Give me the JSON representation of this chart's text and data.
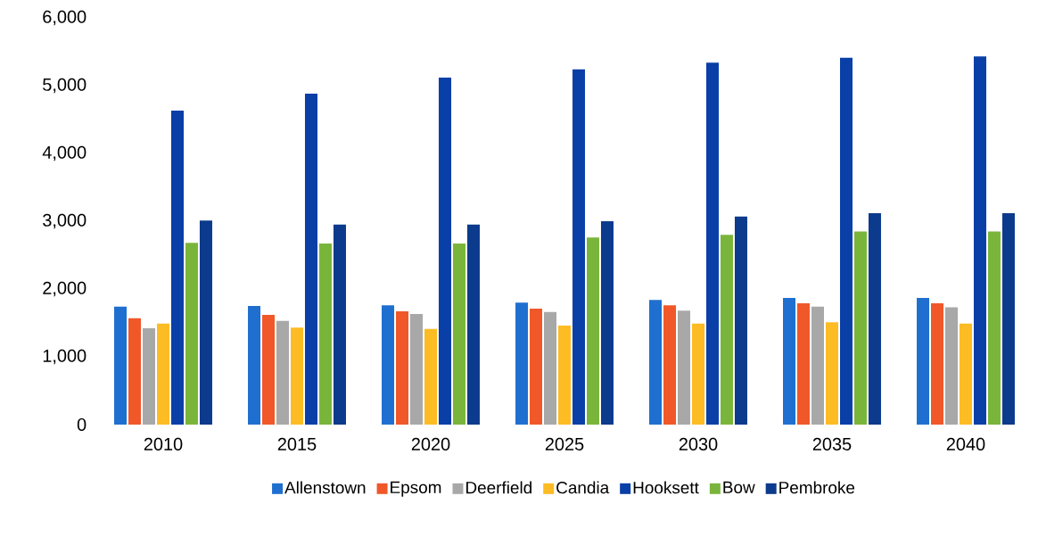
{
  "chart_data": {
    "type": "bar",
    "categories": [
      "2010",
      "2015",
      "2020",
      "2025",
      "2030",
      "2035",
      "2040"
    ],
    "series": [
      {
        "name": "Allenstown",
        "color": "#1f6fd0",
        "values": [
          1740,
          1750,
          1760,
          1800,
          1840,
          1870,
          1870
        ]
      },
      {
        "name": "Epsom",
        "color": "#f0582a",
        "values": [
          1570,
          1620,
          1670,
          1710,
          1760,
          1790,
          1790
        ]
      },
      {
        "name": "Deerfield",
        "color": "#a8a8a8",
        "values": [
          1420,
          1530,
          1630,
          1660,
          1680,
          1740,
          1730
        ]
      },
      {
        "name": "Candia",
        "color": "#fdbb24",
        "values": [
          1490,
          1430,
          1410,
          1460,
          1490,
          1510,
          1490
        ]
      },
      {
        "name": "Hooksett",
        "color": "#0a3fa8",
        "values": [
          4630,
          4880,
          5120,
          5240,
          5340,
          5410,
          5430
        ]
      },
      {
        "name": "Bow",
        "color": "#7ab53b",
        "values": [
          2680,
          2670,
          2670,
          2760,
          2800,
          2850,
          2850
        ]
      },
      {
        "name": "Pembroke",
        "color": "#0c3a8c",
        "values": [
          3010,
          2950,
          2950,
          3000,
          3070,
          3120,
          3120
        ]
      }
    ],
    "ylim": [
      0,
      6000
    ],
    "yticks": [
      0,
      {
        "value": 1000,
        "label": "1,000"
      },
      {
        "value": 2000,
        "label": "2,000"
      },
      {
        "value": 3000,
        "label": "3,000"
      },
      {
        "value": 4000,
        "label": "4,000"
      },
      {
        "value": 5000,
        "label": "5,000"
      },
      {
        "value": 6000,
        "label": "6,000"
      }
    ],
    "grid": false,
    "legend": "bottom"
  }
}
